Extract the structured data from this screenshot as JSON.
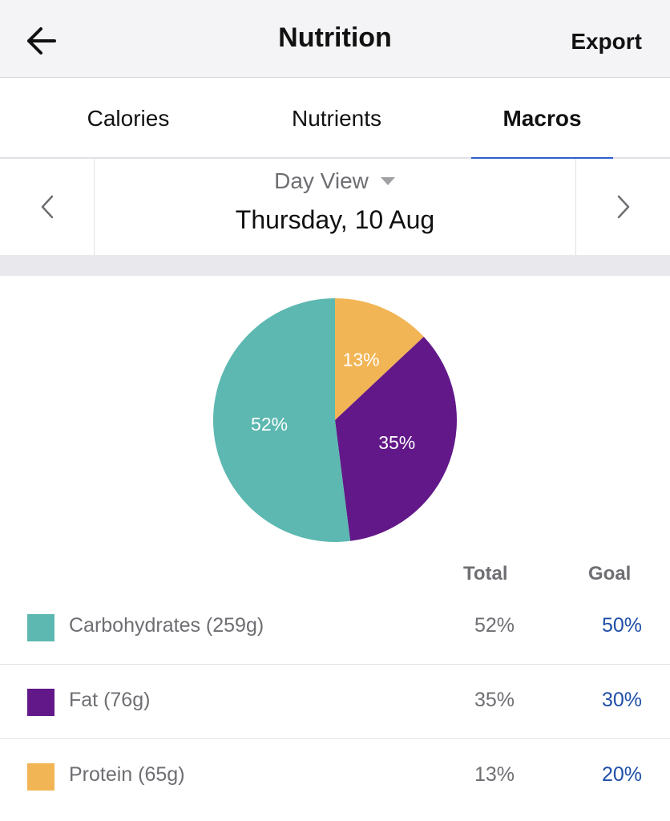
{
  "header": {
    "title": "Nutrition",
    "export_label": "Export"
  },
  "tabs": [
    {
      "label": "Calories",
      "active": false
    },
    {
      "label": "Nutrients",
      "active": false
    },
    {
      "label": "Macros",
      "active": true
    }
  ],
  "date_nav": {
    "view_label": "Day View",
    "date": "Thursday, 10 Aug"
  },
  "table_headers": {
    "total": "Total",
    "goal": "Goal"
  },
  "chart_data": {
    "type": "pie",
    "slices": [
      {
        "label": "Protein",
        "value": 13,
        "display": "13%",
        "color": "#f2b555"
      },
      {
        "label": "Fat",
        "value": 35,
        "display": "35%",
        "color": "#621889"
      },
      {
        "label": "Carbohydrates",
        "value": 52,
        "display": "52%",
        "color": "#5cb8b0"
      }
    ],
    "start": "12 o'clock",
    "direction": "clockwise"
  },
  "macros": [
    {
      "label": "Carbohydrates (259g)",
      "total": "52%",
      "goal": "50%",
      "color": "#5cb8b0"
    },
    {
      "label": "Fat (76g)",
      "total": "35%",
      "goal": "30%",
      "color": "#621889"
    },
    {
      "label": "Protein (65g)",
      "total": "13%",
      "goal": "20%",
      "color": "#f2b555"
    }
  ],
  "icons": {
    "back": "arrow-left-icon",
    "prev": "chevron-left-icon",
    "next": "chevron-right-icon",
    "dropdown": "caret-down-icon"
  }
}
